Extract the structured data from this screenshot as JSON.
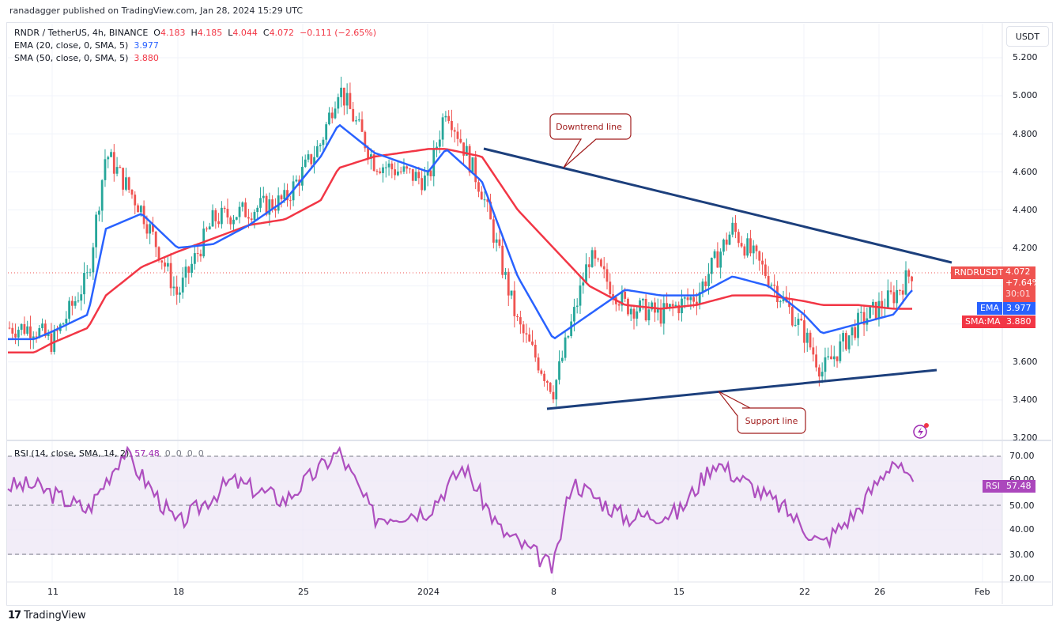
{
  "header": {
    "published": "ranadagger published on TradingView.com, Jan 28, 2024 15:29 UTC"
  },
  "legend": {
    "symbol": "RNDR / TetherUS, 4h, BINANCE",
    "open_label": "O",
    "open": "4.183",
    "high_label": "H",
    "high": "4.185",
    "low_label": "L",
    "low": "4.044",
    "close_label": "C",
    "close": "4.072",
    "change": "−0.111 (−2.65%)",
    "ema_label": "EMA (20, close, 0, SMA, 5)",
    "ema_value": "3.977",
    "sma_label": "SMA (50, close, 0, SMA, 5)",
    "sma_value": "3.880",
    "rsi_label": "RSI (14, close, SMA, 14, 2)",
    "rsi_value": "57.48",
    "rsi_extra": [
      "0",
      "0",
      "0",
      "0"
    ]
  },
  "price_scale": {
    "currency": "USDT",
    "ticks": [
      "5.200",
      "5.000",
      "4.800",
      "4.600",
      "4.400",
      "4.200",
      "3.600",
      "3.400",
      "3.200"
    ]
  },
  "rsi_scale": {
    "ticks": [
      "70.00",
      "60.00",
      "50.00",
      "40.00",
      "30.00",
      "20.00"
    ]
  },
  "tags": {
    "symbol": "RNDRUSDT",
    "last_price": "4.072",
    "change_pct": "+7.64%",
    "countdown": "30:01",
    "ema_tag": "EMA",
    "ema_value": "3.977",
    "sma_tag": "SMA:MA",
    "sma_value": "3.880",
    "rsi_tag": "RSI",
    "rsi_value": "57.48"
  },
  "time_axis": {
    "labels": [
      "11",
      "18",
      "25",
      "2024",
      "8",
      "15",
      "22",
      "26",
      "Feb"
    ]
  },
  "annotations": {
    "downtrend": "Downtrend line",
    "support": "Support line"
  },
  "footer": {
    "brand": "TradingView",
    "logo": "17"
  },
  "colors": {
    "up": "#26a69a",
    "down": "#ef5350",
    "ema": "#2962ff",
    "sma": "#f23645",
    "rsi": "#9c27b0",
    "trendline": "#1c3f7c",
    "callout": "#a01c1c"
  },
  "chart_data": {
    "type": "candlestick",
    "title": "RNDR / TetherUS, 4h, BINANCE",
    "timeframe": "4h",
    "xlabel": "",
    "ylabel": "USDT",
    "x_ticks": [
      "11",
      "18",
      "25",
      "2024",
      "8",
      "15",
      "22",
      "26",
      "Feb"
    ],
    "ylim": [
      3.2,
      5.3
    ],
    "grid": true,
    "last": {
      "open": 4.183,
      "high": 4.185,
      "low": 4.044,
      "close": 4.072,
      "change": -0.111,
      "change_pct": -2.65
    },
    "price_path": {
      "x": [
        "Dec 10",
        "Dec 11",
        "Dec 13",
        "Dec 14",
        "Dec 16",
        "Dec 18",
        "Dec 20",
        "Dec 22",
        "Dec 24",
        "Dec 26",
        "Dec 27",
        "Dec 29",
        "Jan 1",
        "Jan 2",
        "Jan 4",
        "Jan 6",
        "Jan 8",
        "Jan 10",
        "Jan 12",
        "Jan 14",
        "Jan 16",
        "Jan 18",
        "Jan 20",
        "Jan 22",
        "Jan 23",
        "Jan 25",
        "Jan 27",
        "Jan 28"
      ],
      "close_approx": [
        3.78,
        3.7,
        4.05,
        4.7,
        4.4,
        3.95,
        4.35,
        4.4,
        4.45,
        4.75,
        5.05,
        4.65,
        4.55,
        4.95,
        4.5,
        3.8,
        3.45,
        4.15,
        3.9,
        3.85,
        3.95,
        4.3,
        4.05,
        3.75,
        3.55,
        3.8,
        3.95,
        4.072
      ]
    },
    "series": [
      {
        "name": "EMA (20)",
        "last": 3.977,
        "values_approx": [
          3.72,
          3.76,
          3.85,
          4.3,
          4.38,
          4.2,
          4.22,
          4.32,
          4.45,
          4.68,
          4.85,
          4.7,
          4.6,
          4.72,
          4.55,
          4.05,
          3.72,
          3.85,
          3.98,
          3.95,
          3.95,
          4.05,
          4.0,
          3.85,
          3.75,
          3.8,
          3.85,
          3.977
        ]
      },
      {
        "name": "SMA (50)",
        "last": 3.88,
        "values_approx": [
          3.65,
          3.7,
          3.78,
          3.95,
          4.1,
          4.18,
          4.25,
          4.32,
          4.35,
          4.45,
          4.62,
          4.68,
          4.72,
          4.72,
          4.68,
          4.4,
          4.2,
          4.0,
          3.9,
          3.88,
          3.9,
          3.95,
          3.95,
          3.92,
          3.9,
          3.9,
          3.88,
          3.88
        ]
      }
    ],
    "trendlines": [
      {
        "name": "Downtrend line",
        "from": {
          "date": "Jan 4",
          "price": 4.72
        },
        "to": {
          "date": "Jan 29",
          "price": 4.13
        }
      },
      {
        "name": "Support line",
        "from": {
          "date": "Jan 8",
          "price": 3.36
        },
        "to": {
          "date": "Jan 29",
          "price": 3.56
        }
      }
    ],
    "rsi": {
      "name": "RSI (14)",
      "last": 57.48,
      "ylim": [
        20,
        75
      ],
      "bands": [
        30,
        50,
        70
      ],
      "x": [
        "Dec 10",
        "Dec 13",
        "Dec 15",
        "Dec 18",
        "Dec 21",
        "Dec 24",
        "Dec 27",
        "Dec 29",
        "Jan 1",
        "Jan 3",
        "Jan 5",
        "Jan 7",
        "Jan 8",
        "Jan 9",
        "Jan 12",
        "Jan 15",
        "Jan 17",
        "Jan 19",
        "Jan 21",
        "Jan 23",
        "Jan 25",
        "Jan 27",
        "Jan 28"
      ],
      "values_approx": [
        58,
        48,
        72,
        42,
        60,
        52,
        72,
        45,
        48,
        66,
        40,
        30,
        24,
        60,
        45,
        47,
        68,
        58,
        48,
        34,
        48,
        69,
        57.48
      ]
    }
  }
}
